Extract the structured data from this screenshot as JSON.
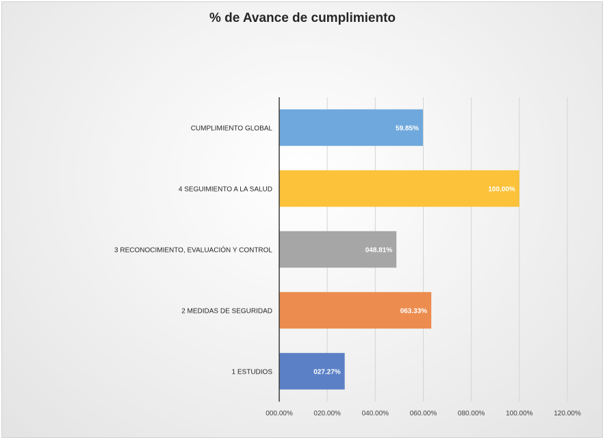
{
  "chart_data": {
    "type": "bar",
    "orientation": "horizontal",
    "title": "% de Avance de cumplimiento",
    "categories": [
      "CUMPLIMIENTO GLOBAL",
      "4  SEGUIMIENTO A LA SALUD",
      "3  RECONOCIMIENTO, EVALUACIÓN Y CONTROL",
      "2  MEDIDAS DE SEGURIDAD",
      "1  ESTUDIOS"
    ],
    "values": [
      59.85,
      100.0,
      48.81,
      63.33,
      27.27
    ],
    "data_labels": [
      "59.85%",
      "100.00%",
      "048.81%",
      "063.33%",
      "027.27%"
    ],
    "colors": [
      "#6FA8DC",
      "#FBC23A",
      "#A6A6A6",
      "#EC8D4F",
      "#5B80C6"
    ],
    "xlim": [
      0,
      120
    ],
    "x_ticks": [
      0,
      20,
      40,
      60,
      80,
      100,
      120
    ],
    "x_tick_labels": [
      "000.00%",
      "020.00%",
      "040.00%",
      "060.00%",
      "080.00%",
      "100.00%",
      "120.00%"
    ],
    "grid": "vertical",
    "legend": "none"
  }
}
